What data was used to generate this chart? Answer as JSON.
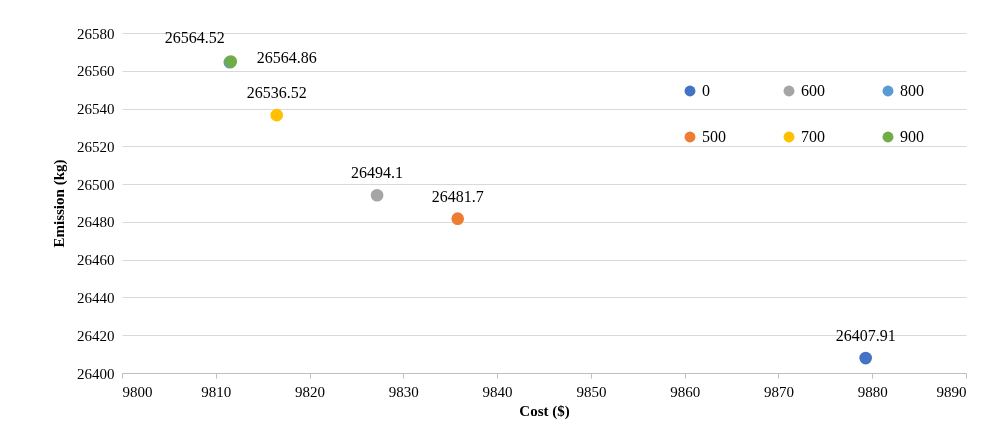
{
  "chart_data": {
    "type": "scatter",
    "xlabel": "Cost ($)",
    "ylabel": "Emission (kg)",
    "xlim": [
      9800,
      9890
    ],
    "xticks": [
      9800,
      9810,
      9820,
      9830,
      9840,
      9850,
      9860,
      9870,
      9880,
      9890
    ],
    "ylim": [
      26400,
      26580
    ],
    "yticks": [
      26400,
      26420,
      26440,
      26460,
      26480,
      26500,
      26520,
      26540,
      26560,
      26580
    ],
    "grid": "y",
    "legend": "top right",
    "marker": "circle",
    "data_labels": true,
    "series": [
      {
        "name": "0",
        "color": "#4472c4",
        "x": [
          9879.3
        ],
        "values": [
          26407.91
        ]
      },
      {
        "name": "500",
        "color": "#ed7d31",
        "x": [
          9835.8
        ],
        "values": [
          26481.7
        ]
      },
      {
        "name": "600",
        "color": "#a5a5a5",
        "x": [
          9827.2
        ],
        "values": [
          26494.1
        ]
      },
      {
        "name": "700",
        "color": "#ffc000",
        "x": [
          9816.5
        ],
        "values": [
          26536.52
        ]
      },
      {
        "name": "800",
        "color": "#5b9bd5",
        "x": [
          9811.5
        ],
        "values": [
          26564.52
        ]
      },
      {
        "name": "900",
        "color": "#70ad47",
        "x": [
          9811.6
        ],
        "values": [
          26564.86
        ]
      }
    ]
  }
}
